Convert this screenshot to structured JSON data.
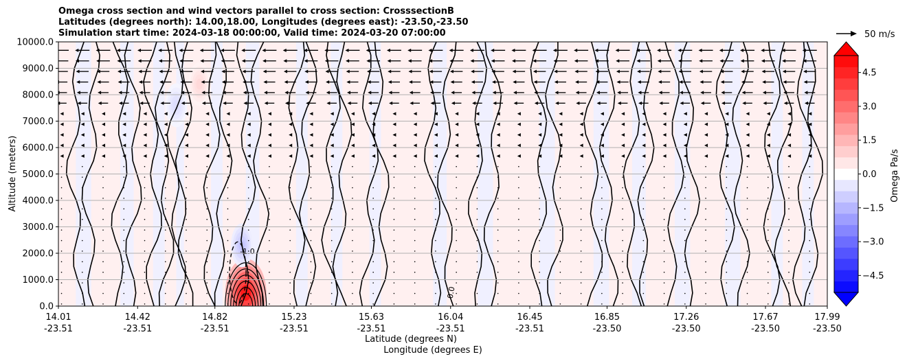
{
  "title": {
    "line1": "Omega cross section and wind vectors parallel to cross section: CrosssectionB",
    "line2": "Latitudes (degrees north): 14.00,18.00, Longitudes (degrees east): -23.50,-23.50",
    "line3": "Simulation start time: 2024-03-18 00:00:00, Valid time: 2024-03-20 07:00:00"
  },
  "chart_data": {
    "type": "heatmap",
    "ylabel": "Altitude (meters)",
    "xlabel_line1": "Latitude (degrees N)",
    "xlabel_line2": "Longitude (degrees E)",
    "ylim": [
      0,
      10000
    ],
    "yticks": [
      "0.0",
      "1000.0",
      "2000.0",
      "3000.0",
      "4000.0",
      "5000.0",
      "6000.0",
      "7000.0",
      "8000.0",
      "9000.0",
      "10000.0"
    ],
    "ytick_values": [
      0,
      1000,
      2000,
      3000,
      4000,
      5000,
      6000,
      7000,
      8000,
      9000,
      10000
    ],
    "xlim": [
      14.01,
      17.99
    ],
    "xticks": [
      {
        "lat": "14.01",
        "lon": "-23.51",
        "value": 14.01
      },
      {
        "lat": "14.42",
        "lon": "-23.51",
        "value": 14.42
      },
      {
        "lat": "14.82",
        "lon": "-23.51",
        "value": 14.82
      },
      {
        "lat": "15.23",
        "lon": "-23.51",
        "value": 15.23
      },
      {
        "lat": "15.63",
        "lon": "-23.51",
        "value": 15.63
      },
      {
        "lat": "16.04",
        "lon": "-23.51",
        "value": 16.04
      },
      {
        "lat": "16.45",
        "lon": "-23.51",
        "value": 16.45
      },
      {
        "lat": "16.85",
        "lon": "-23.50",
        "value": 16.85
      },
      {
        "lat": "17.26",
        "lon": "-23.50",
        "value": 17.26
      },
      {
        "lat": "17.67",
        "lon": "-23.50",
        "value": 17.67
      },
      {
        "lat": "17.99",
        "lon": "-23.50",
        "value": 17.99
      }
    ],
    "grid": true,
    "colorbar": {
      "label": "Omega Pa/s",
      "range": [
        -5.25,
        5.25
      ],
      "ticks": [
        "4.5",
        "3.0",
        "1.5",
        "0.0",
        "−1.5",
        "−3.0",
        "−4.5"
      ],
      "tick_values": [
        4.5,
        3.0,
        1.5,
        0.0,
        -1.5,
        -3.0,
        -4.5
      ],
      "extend": "both"
    },
    "quiver_key": {
      "label": "50 m/s"
    },
    "contour_labels": [
      {
        "text": "0.0",
        "x": 16.05,
        "y": 270,
        "rot": -80
      },
      {
        "text": "-1.0",
        "x": 14.95,
        "y": 1980,
        "rot": 0
      }
    ],
    "omega_features": [
      {
        "x": 14.98,
        "y": 500,
        "value": 4.8,
        "desc": "strong updraft-adjacent positive core"
      },
      {
        "x": 14.96,
        "y": 2300,
        "value": -1.2
      },
      {
        "x": 14.74,
        "y": 8400,
        "value": 0.8
      },
      {
        "x": 14.62,
        "y": 7600,
        "value": -0.7
      }
    ]
  },
  "colors": {
    "positive": "#ff0000",
    "negative": "#0000ff",
    "neutral_pos": "#fff0f0",
    "neutral_neg": "#f0f0ff",
    "contour": "#000000"
  }
}
